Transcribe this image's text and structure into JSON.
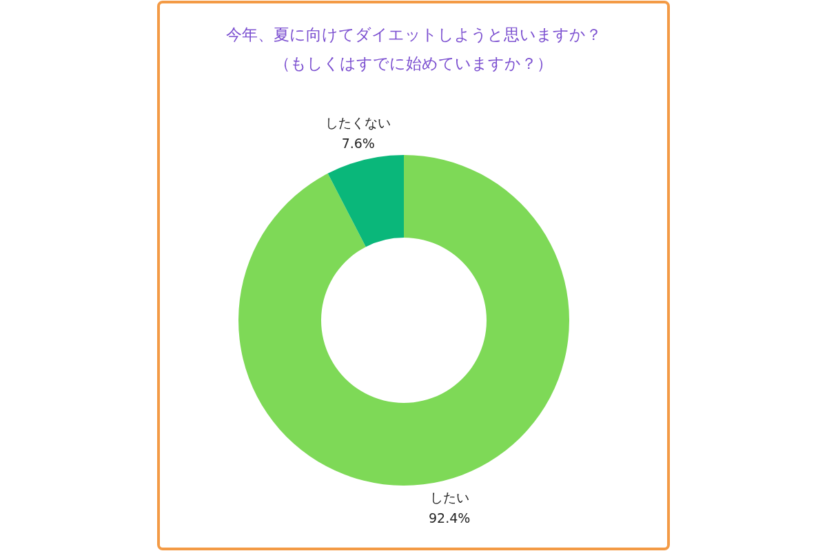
{
  "chart_data": {
    "type": "donut",
    "title": "今年、夏に向けてダイエットしようと思いますか？",
    "subtitle": "（もしくはすでに始めていますか？）",
    "categories": [
      "したい",
      "したくない"
    ],
    "values": [
      92.4,
      7.6
    ],
    "colors": [
      "#7ed957",
      "#0ab77a"
    ],
    "value_labels": [
      "92.4%",
      "7.6%"
    ],
    "legend": false
  }
}
